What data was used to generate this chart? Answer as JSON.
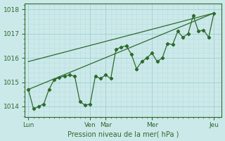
{
  "title": "Pression niveau de la mer( hPa )",
  "bg_color": "#cce9ea",
  "line_color": "#2d6a2d",
  "grid_major_color": "#9ecfcf",
  "grid_minor_color": "#b8dede",
  "yticks": [
    1014,
    1015,
    1016,
    1017,
    1018
  ],
  "ylim": [
    1013.55,
    1018.25
  ],
  "day_labels": [
    "Lun",
    "Ven",
    "Mar",
    "Mer",
    "Jeu"
  ],
  "day_positions": [
    0,
    48,
    60,
    96,
    144
  ],
  "xlim": [
    -3,
    150
  ],
  "series1_x": [
    0,
    4,
    8,
    12,
    16,
    20,
    24,
    28,
    32,
    36,
    40,
    44,
    48,
    52,
    56,
    60,
    64,
    68,
    72,
    76,
    80,
    84,
    88,
    92,
    96,
    100,
    104,
    108,
    112,
    116,
    120,
    124,
    128,
    132,
    136,
    140,
    144
  ],
  "series1_y": [
    1014.7,
    1013.9,
    1014.0,
    1014.1,
    1014.7,
    1015.1,
    1015.2,
    1015.25,
    1015.3,
    1015.25,
    1014.2,
    1014.05,
    1014.1,
    1015.25,
    1015.15,
    1015.3,
    1015.15,
    1016.35,
    1016.45,
    1016.5,
    1016.15,
    1015.55,
    1015.85,
    1016.0,
    1016.2,
    1015.85,
    1016.0,
    1016.6,
    1016.55,
    1017.1,
    1016.85,
    1017.0,
    1017.75,
    1017.1,
    1017.15,
    1016.85,
    1017.85
  ],
  "series2_x": [
    0,
    144
  ],
  "series2_y": [
    1015.85,
    1017.85
  ],
  "series3_x": [
    0,
    144
  ],
  "series3_y": [
    1014.7,
    1017.85
  ]
}
